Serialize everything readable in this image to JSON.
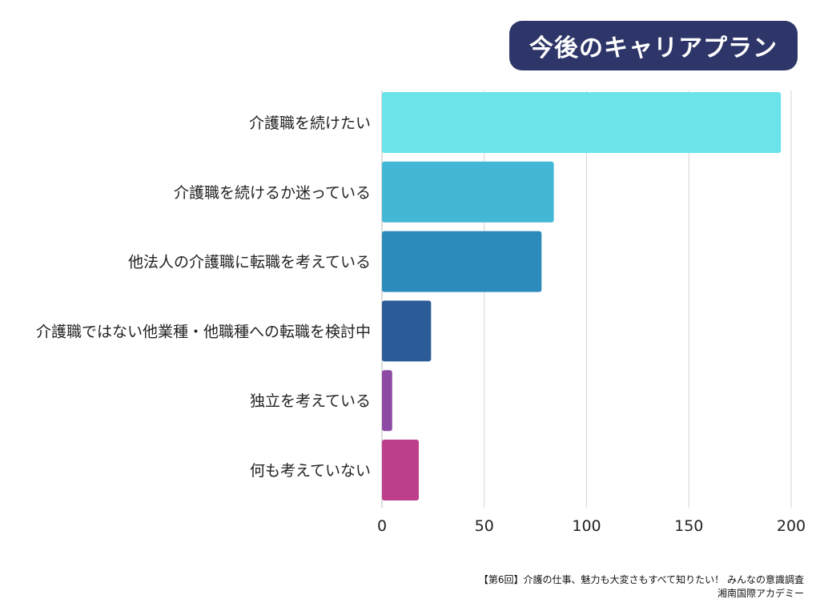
{
  "chart_data": {
    "type": "bar",
    "orientation": "horizontal",
    "title": "今後のキャリアプラン",
    "categories": [
      "介護職を続けたい",
      "介護職を続けるか迷っている",
      "他法人の介護職に転職を考えている",
      "介護職ではない他業種・他職種への転職を検討中",
      "独立を考えている",
      "何も考えていない"
    ],
    "values": [
      195,
      84,
      78,
      24,
      5,
      18
    ],
    "colors": [
      "#6ae4ea",
      "#43b8d6",
      "#2c8bba",
      "#2c5c98",
      "#8d4aa4",
      "#bd3f8c"
    ],
    "xlim": [
      0,
      200
    ],
    "xticks": [
      0,
      50,
      100,
      150,
      200
    ],
    "grid": true,
    "xlabel": "",
    "ylabel": ""
  },
  "footer": {
    "line1": "【第6回】介護の仕事、魅力も大変さもすべて知りたい！ みんなの意識調査",
    "line2": "湘南国際アカデミー"
  }
}
